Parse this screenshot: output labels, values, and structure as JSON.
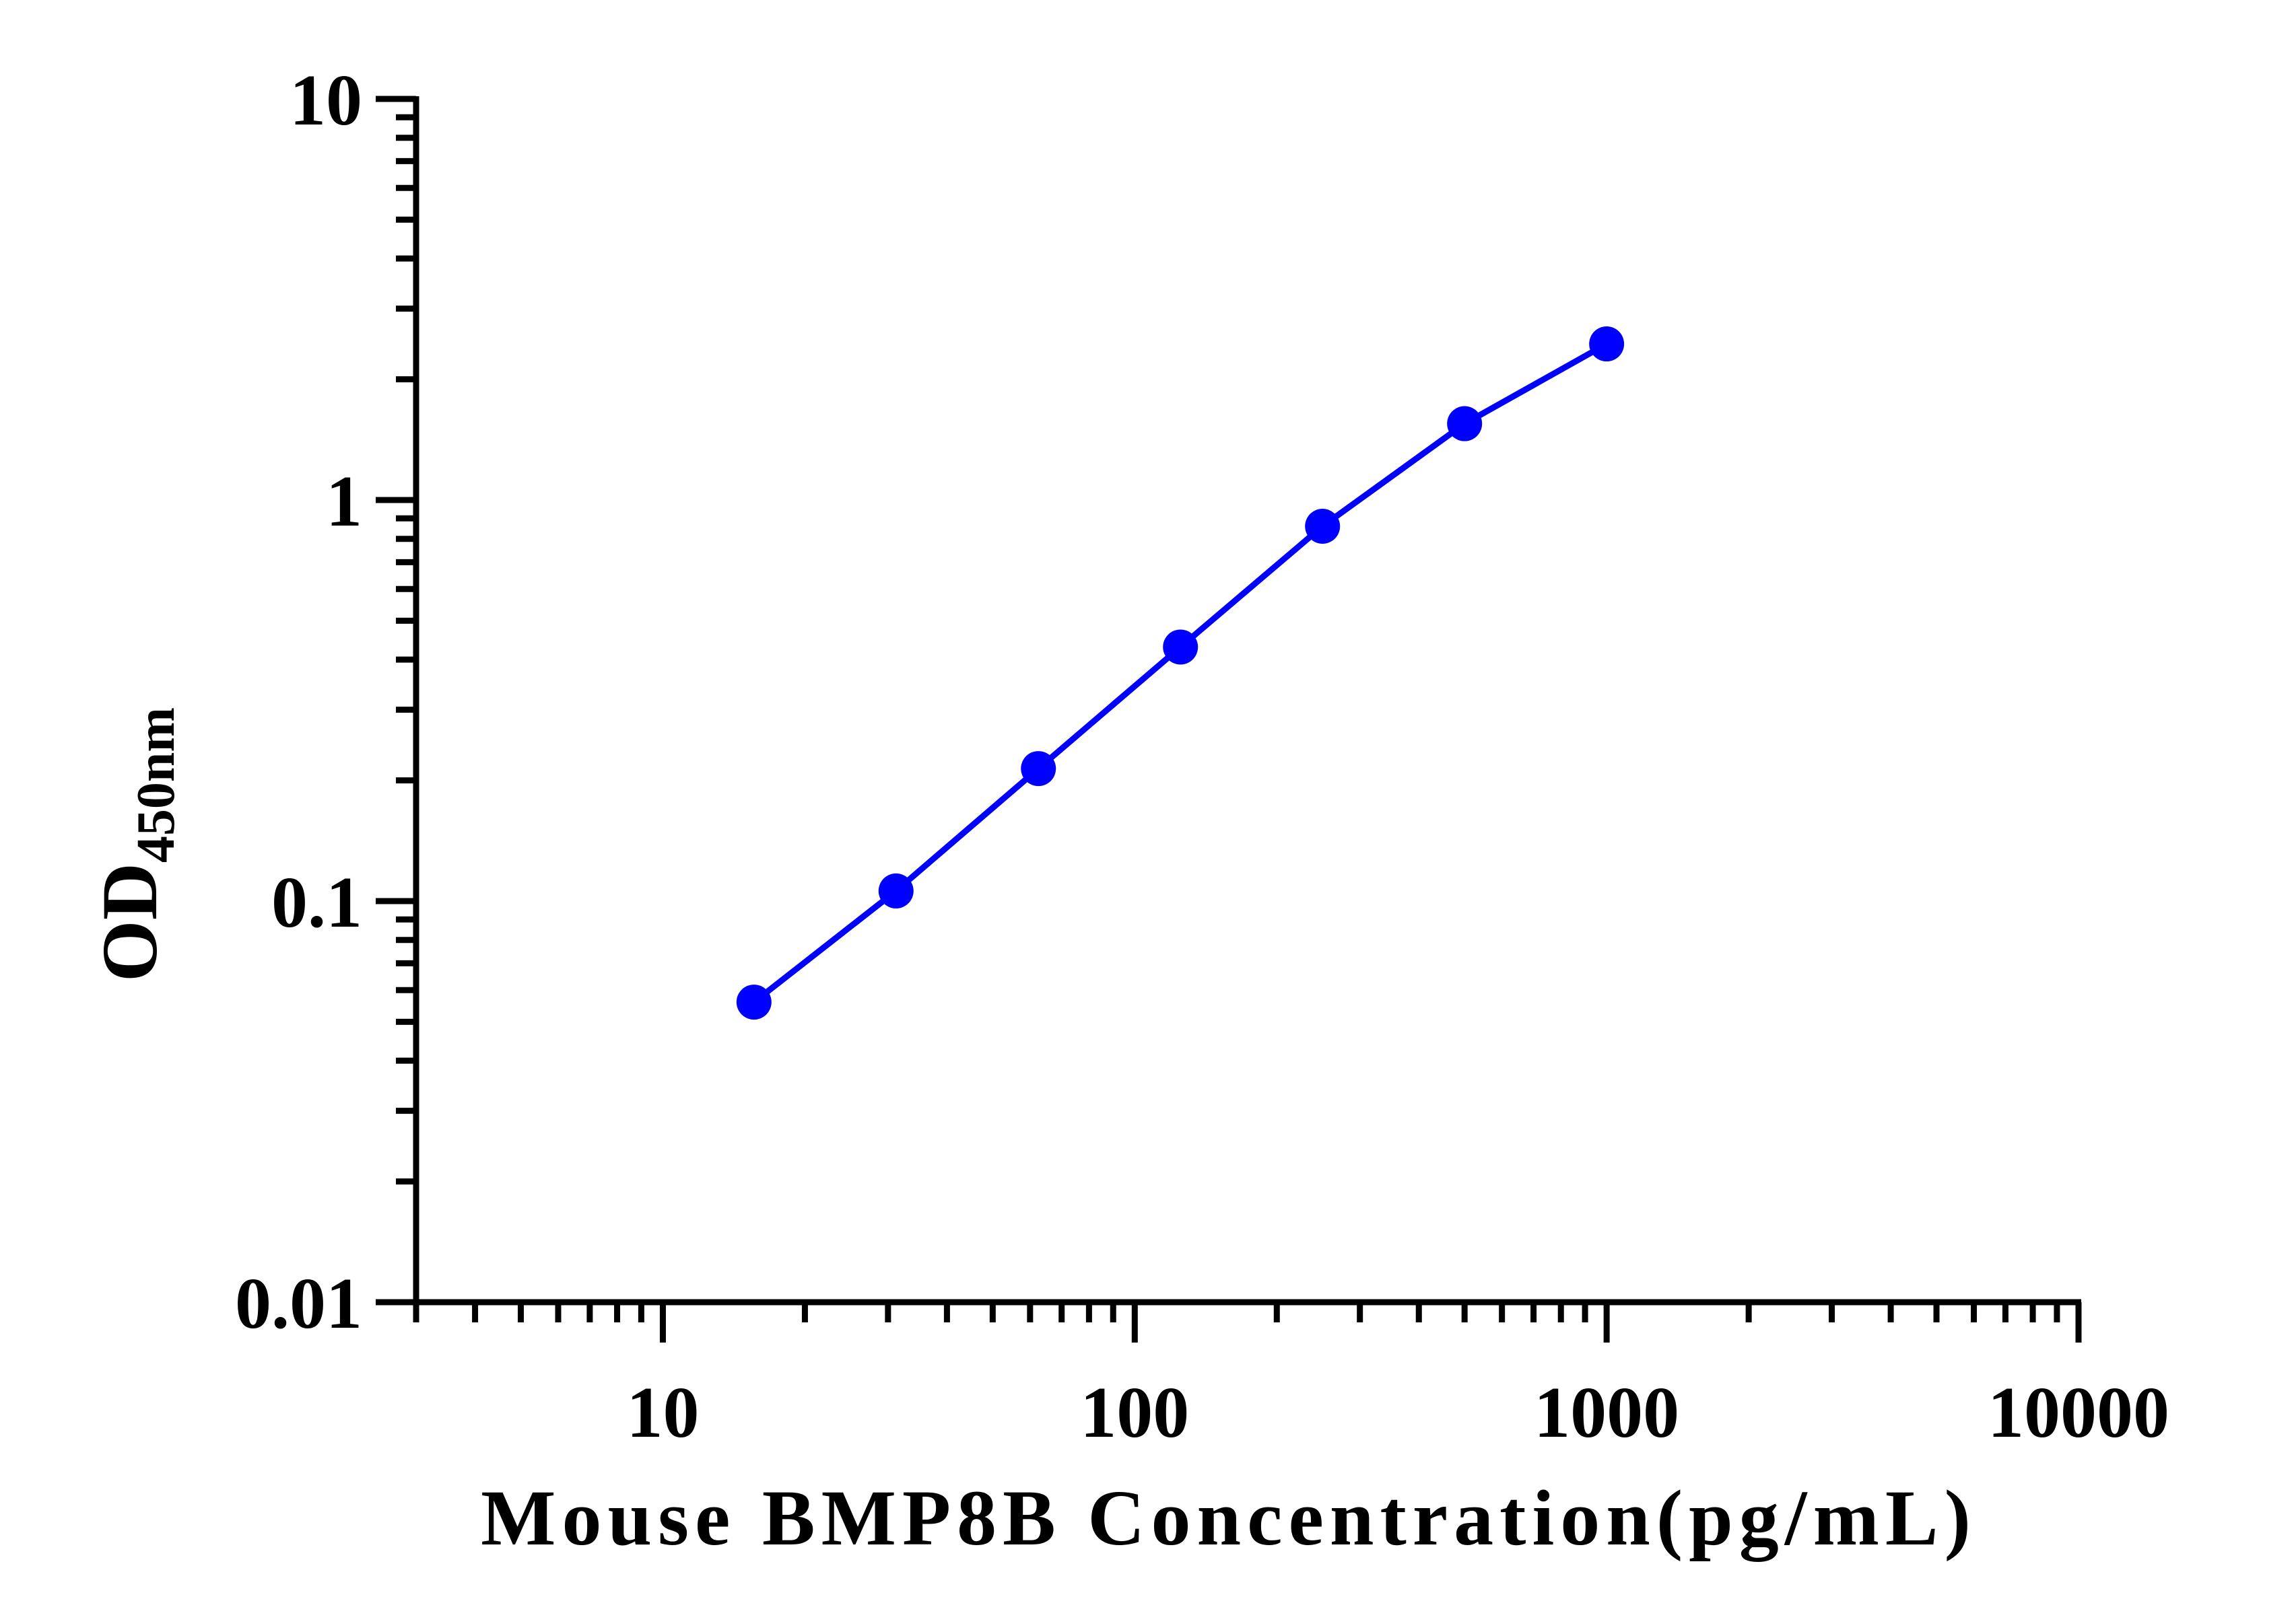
{
  "chart_data": {
    "type": "line",
    "title": "",
    "xlabel": "Mouse BMP8B Concentration(pg/mL)",
    "ylabel": {
      "main": "OD",
      "subscript": "450nm"
    },
    "x_scale": "log",
    "y_scale": "log",
    "xlim": [
      3,
      10000
    ],
    "ylim": [
      0.01,
      10
    ],
    "x_ticks": [
      {
        "value": 10,
        "label": "10"
      },
      {
        "value": 100,
        "label": "100"
      },
      {
        "value": 1000,
        "label": "1000"
      },
      {
        "value": 10000,
        "label": "10000"
      }
    ],
    "y_ticks": [
      {
        "value": 0.01,
        "label": "0.01"
      },
      {
        "value": 0.1,
        "label": "0.1"
      },
      {
        "value": 1,
        "label": "1"
      },
      {
        "value": 10,
        "label": "10"
      }
    ],
    "grid": false,
    "legend": "none",
    "series": [
      {
        "color": "#0000ff",
        "marker": "circle",
        "x": [
          15.6,
          31.2,
          62.5,
          125,
          250,
          500,
          1000
        ],
        "y": [
          0.056,
          0.106,
          0.214,
          0.43,
          0.86,
          1.55,
          2.45
        ]
      }
    ]
  }
}
